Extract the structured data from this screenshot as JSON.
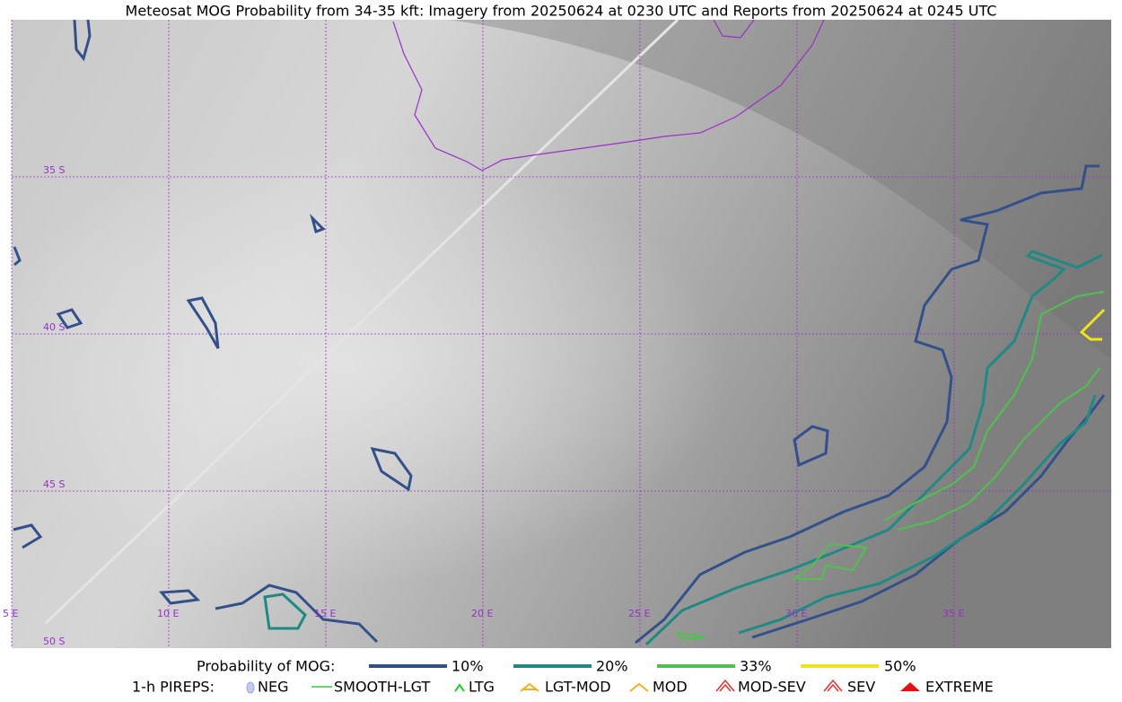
{
  "title": "Meteosat MOG Probability from 34-35 kft: Imagery from 20250624 at 0230 UTC and Reports from 20250624 at 0245 UTC",
  "map": {
    "lat_labels": [
      "35 S",
      "40 S",
      "45 S",
      "50 S"
    ],
    "lon_labels": [
      "5 E",
      "10 E",
      "15 E",
      "20 E",
      "25 E",
      "30 E",
      "35 E"
    ]
  },
  "legend": {
    "probability": {
      "label": "Probability of MOG:",
      "items": [
        "10%",
        "20%",
        "33%",
        "50%"
      ]
    },
    "pireps": {
      "label": "1-h PIREPS:",
      "items": [
        "NEG",
        "SMOOTH-LGT",
        "LTG",
        "LGT-MOD",
        "MOD",
        "MOD-SEV",
        "SEV",
        "EXTREME"
      ]
    }
  }
}
